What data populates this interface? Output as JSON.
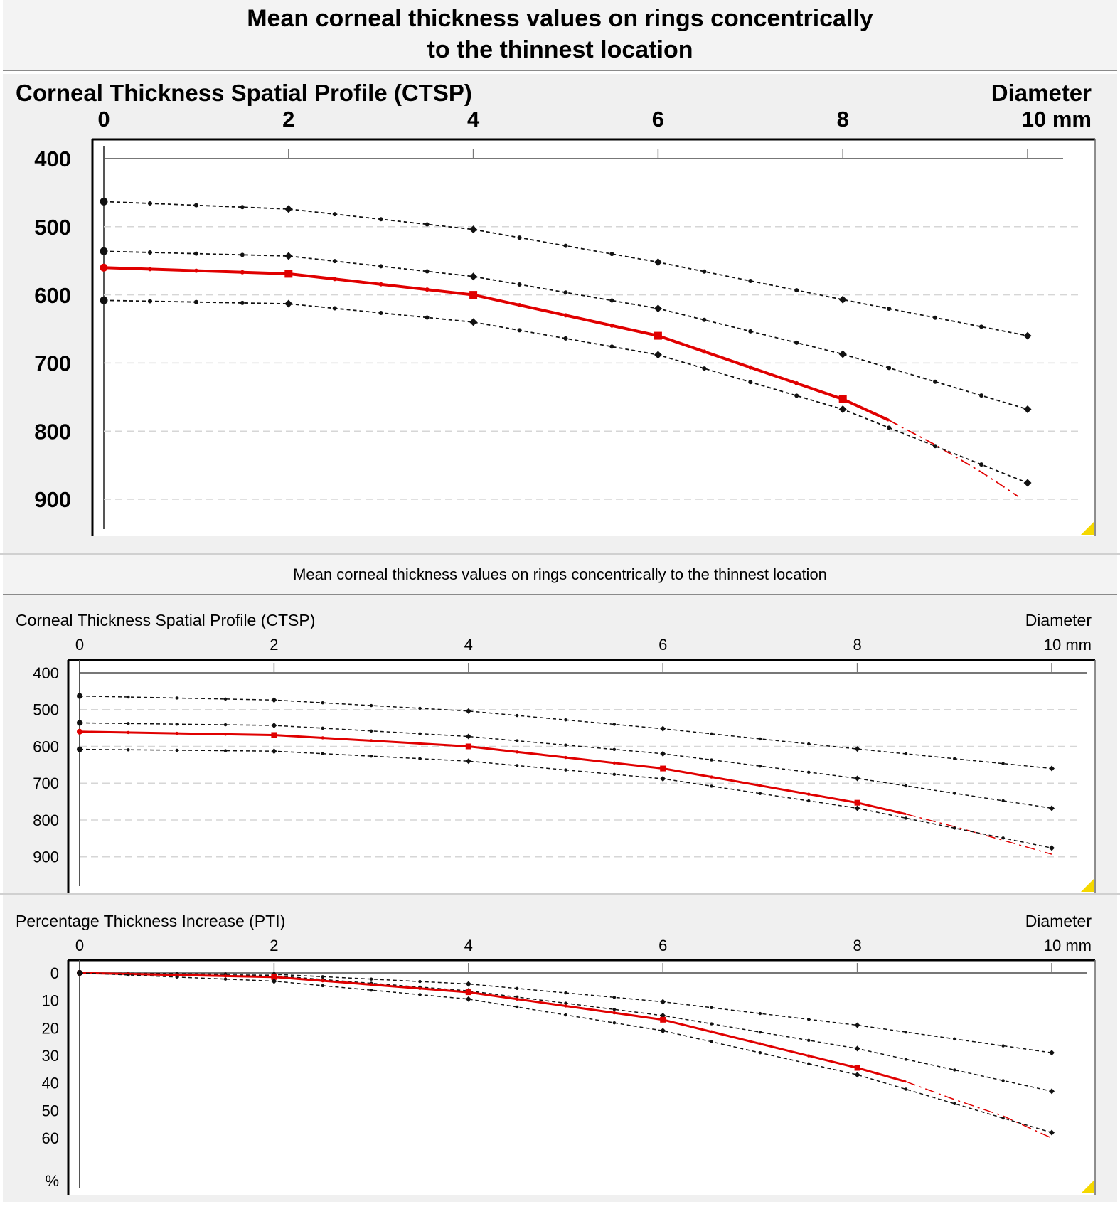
{
  "header_top": {
    "line1": "Mean corneal thickness values on rings concentrically",
    "line2": "to the thinnest location"
  },
  "header_bottom": {
    "title": "Mean corneal thickness values on rings concentrically to the thinnest location"
  },
  "colors": {
    "mean_line": "#e00000",
    "band_line": "#111111",
    "grid": "#d6d6d6",
    "panel_bg": "#f0f0f0",
    "corner_marker": "#f5d800"
  },
  "chart_data": [
    {
      "type": "line",
      "title": "Corneal Thickness Spatial Profile (CTSP)",
      "xlabel": "Diameter",
      "x_unit": "mm",
      "ylabel": "",
      "x_ticks": [
        "0",
        "2",
        "4",
        "6",
        "8",
        "10"
      ],
      "y_ticks": [
        "400",
        "500",
        "600",
        "700",
        "800",
        "900"
      ],
      "xlim": [
        0,
        10
      ],
      "ylim": [
        400,
        950
      ],
      "y_inverted": true,
      "legend": "none",
      "grid": true,
      "series": [
        {
          "style": "band-upper",
          "x": [
            0,
            2,
            4,
            6,
            8,
            10
          ],
          "values": [
            463,
            474,
            504,
            552,
            607,
            660
          ]
        },
        {
          "style": "band-middle",
          "x": [
            0,
            2,
            4,
            6,
            8,
            10
          ],
          "values": [
            536,
            543,
            573,
            620,
            687,
            768
          ]
        },
        {
          "style": "mean",
          "x": [
            0,
            2,
            4,
            6,
            8,
            8.5
          ],
          "values": [
            560,
            569,
            600,
            660,
            753,
            784
          ]
        },
        {
          "style": "mean-extrapolated",
          "x": [
            8.5,
            9,
            9.5,
            9.9
          ],
          "values": [
            784,
            820,
            860,
            896
          ]
        },
        {
          "style": "band-lower",
          "x": [
            0,
            2,
            4,
            6,
            8,
            10
          ],
          "values": [
            608,
            613,
            640,
            688,
            768,
            876
          ]
        }
      ]
    },
    {
      "type": "line",
      "title": "Corneal Thickness Spatial Profile (CTSP)",
      "xlabel": "Diameter",
      "x_unit": "mm",
      "ylabel": "",
      "x_ticks": [
        "0",
        "2",
        "4",
        "6",
        "8",
        "10"
      ],
      "y_ticks": [
        "400",
        "500",
        "600",
        "700",
        "800",
        "900"
      ],
      "xlim": [
        0,
        10
      ],
      "ylim": [
        400,
        950
      ],
      "y_inverted": true,
      "legend": "none",
      "grid": true,
      "series": [
        {
          "style": "band-upper",
          "x": [
            0,
            2,
            4,
            6,
            8,
            10
          ],
          "values": [
            463,
            474,
            504,
            552,
            607,
            660
          ]
        },
        {
          "style": "band-middle",
          "x": [
            0,
            2,
            4,
            6,
            8,
            10
          ],
          "values": [
            536,
            543,
            573,
            620,
            687,
            768
          ]
        },
        {
          "style": "mean",
          "x": [
            0,
            2,
            4,
            6,
            8,
            8.5
          ],
          "values": [
            560,
            569,
            600,
            660,
            753,
            784
          ]
        },
        {
          "style": "mean-extrapolated",
          "x": [
            8.5,
            9,
            9.5,
            10
          ],
          "values": [
            784,
            818,
            855,
            893
          ]
        },
        {
          "style": "band-lower",
          "x": [
            0,
            2,
            4,
            6,
            8,
            10
          ],
          "values": [
            608,
            613,
            640,
            688,
            768,
            876
          ]
        }
      ]
    },
    {
      "type": "line",
      "title": "Percentage Thickness Increase (PTI)",
      "xlabel": "Diameter",
      "x_unit": "mm",
      "ylabel": "%",
      "x_ticks": [
        "0",
        "2",
        "4",
        "6",
        "8",
        "10"
      ],
      "y_ticks": [
        "0",
        "10",
        "20",
        "30",
        "40",
        "50",
        "60"
      ],
      "xlim": [
        0,
        10
      ],
      "ylim": [
        0,
        78
      ],
      "y_inverted": true,
      "legend": "none",
      "grid": false,
      "series": [
        {
          "style": "band-upper",
          "x": [
            0,
            2,
            4,
            6,
            8,
            10
          ],
          "values": [
            0,
            0.5,
            4,
            10.5,
            19,
            29
          ]
        },
        {
          "style": "band-middle",
          "x": [
            0,
            2,
            4,
            6,
            8,
            10
          ],
          "values": [
            0,
            1,
            6.5,
            15.5,
            27.5,
            43
          ]
        },
        {
          "style": "mean",
          "x": [
            0,
            2,
            4,
            6,
            8,
            8.5
          ],
          "values": [
            0,
            1.5,
            7,
            17,
            34.5,
            39.5
          ]
        },
        {
          "style": "mean-extrapolated",
          "x": [
            8.5,
            9,
            9.5,
            10
          ],
          "values": [
            39.5,
            46,
            52,
            60
          ]
        },
        {
          "style": "band-lower",
          "x": [
            0,
            2,
            4,
            6,
            8,
            10
          ],
          "values": [
            0,
            3,
            9.5,
            21,
            37,
            58
          ]
        }
      ]
    }
  ]
}
